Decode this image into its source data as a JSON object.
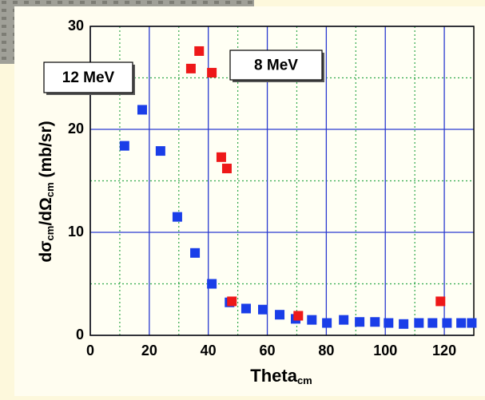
{
  "chart_data": {
    "type": "scatter",
    "xlabel": [
      "Theta",
      "cm"
    ],
    "ylabel": [
      "dσ",
      "cm",
      "/dΩ",
      "cm",
      "  (mb/sr)"
    ],
    "xlim": [
      0,
      130
    ],
    "ylim": [
      0,
      30
    ],
    "xticks": [
      0,
      20,
      40,
      60,
      80,
      100,
      120
    ],
    "yticks": [
      0,
      10,
      20,
      30
    ],
    "xminor": [
      10,
      30,
      50,
      70,
      90,
      110
    ],
    "yminor": [
      5,
      15,
      25
    ],
    "grid": true,
    "series": [
      {
        "name": "12 MeV",
        "color": "#1a3ee8",
        "x": [
          11.6,
          17.6,
          23.8,
          29.5,
          35.5,
          41.2,
          47.2,
          52.8,
          58.5,
          64.2,
          69.6,
          75.1,
          80.2,
          85.9,
          91.3,
          96.5,
          101.1,
          106.2,
          111.4,
          116,
          120.9,
          125.7,
          129.3
        ],
        "values": [
          18.4,
          21.9,
          17.9,
          11.5,
          8.0,
          5.0,
          3.2,
          2.6,
          2.5,
          2.0,
          1.6,
          1.5,
          1.2,
          1.5,
          1.3,
          1.3,
          1.2,
          1.1,
          1.2,
          1.2,
          1.2,
          1.2,
          1.2
        ]
      },
      {
        "name": "8 MeV",
        "color": "#ee1818",
        "x": [
          34.1,
          36.9,
          41.2,
          44.4,
          46.3,
          48.0,
          70.5,
          118.7
        ],
        "values": [
          25.9,
          27.6,
          25.5,
          17.3,
          16.2,
          3.3,
          1.9,
          3.3
        ]
      }
    ]
  }
}
